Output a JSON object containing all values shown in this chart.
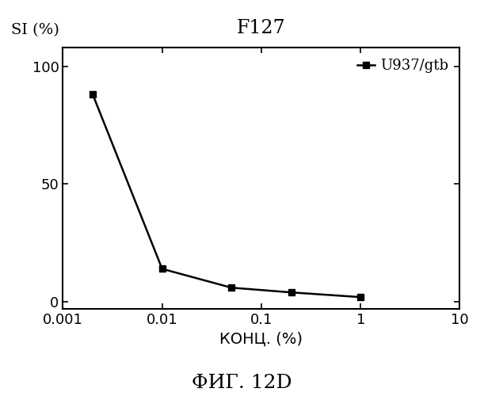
{
  "title": "F127",
  "ylabel": "SI (%)",
  "xlabel": "КОНЦ. (%)",
  "caption": "ФИГ. 12D",
  "legend_label": "U937/gtb",
  "x_data": [
    0.002,
    0.01,
    0.05,
    0.2,
    1.0
  ],
  "y_data": [
    88,
    14,
    6,
    4,
    2
  ],
  "xlim": [
    0.001,
    10
  ],
  "ylim": [
    -3,
    108
  ],
  "yticks": [
    0,
    50,
    100
  ],
  "xticks": [
    0.001,
    0.01,
    0.1,
    1,
    10
  ],
  "xticklabels": [
    "0.001",
    "0.01",
    "0.1",
    "1",
    "10"
  ],
  "line_color": "#000000",
  "marker": "s",
  "markersize": 6,
  "linewidth": 1.8,
  "background_color": "#ffffff",
  "title_fontsize": 17,
  "label_fontsize": 14,
  "tick_fontsize": 13,
  "caption_fontsize": 18,
  "legend_fontsize": 13
}
